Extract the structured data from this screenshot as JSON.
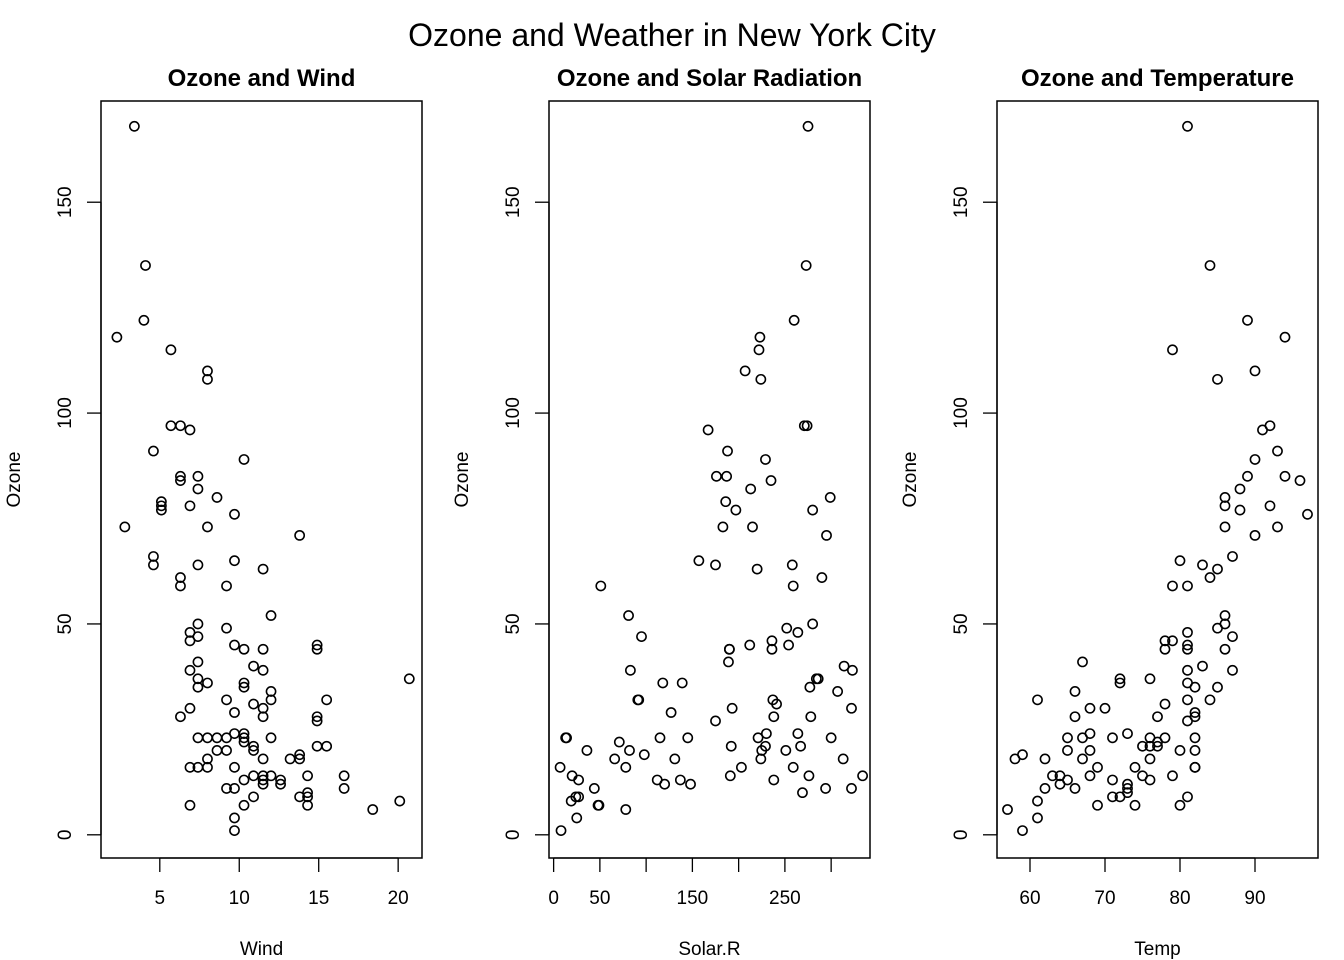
{
  "figure": {
    "title": "Ozone and Weather in New York City"
  },
  "chart_data": [
    {
      "type": "scatter",
      "title": "Ozone and Wind",
      "xlabel": "Wind",
      "ylabel": "Ozone",
      "xlim": [
        1.3,
        21.5
      ],
      "ylim": [
        -5.5,
        174
      ],
      "xticks": [
        5,
        10,
        15,
        20
      ],
      "yticks": [
        0,
        50,
        100,
        150
      ],
      "grid": false,
      "points": [
        [
          2.3,
          118
        ],
        [
          2.8,
          73
        ],
        [
          3.4,
          168
        ],
        [
          4.0,
          122
        ],
        [
          4.1,
          135
        ],
        [
          4.6,
          91
        ],
        [
          4.6,
          66
        ],
        [
          4.6,
          64
        ],
        [
          5.1,
          79
        ],
        [
          5.1,
          78
        ],
        [
          5.1,
          77
        ],
        [
          5.7,
          115
        ],
        [
          5.7,
          97
        ],
        [
          6.3,
          97
        ],
        [
          6.3,
          85
        ],
        [
          6.3,
          84
        ],
        [
          6.3,
          61
        ],
        [
          6.3,
          59
        ],
        [
          6.3,
          28
        ],
        [
          6.9,
          96
        ],
        [
          6.9,
          78
        ],
        [
          6.9,
          48
        ],
        [
          6.9,
          46
        ],
        [
          6.9,
          39
        ],
        [
          6.9,
          30
        ],
        [
          6.9,
          16
        ],
        [
          6.9,
          7
        ],
        [
          7.4,
          85
        ],
        [
          7.4,
          82
        ],
        [
          7.4,
          64
        ],
        [
          7.4,
          50
        ],
        [
          7.4,
          47
        ],
        [
          7.4,
          41
        ],
        [
          7.4,
          37
        ],
        [
          7.4,
          35
        ],
        [
          7.4,
          23
        ],
        [
          7.4,
          16
        ],
        [
          8.0,
          110
        ],
        [
          8.0,
          108
        ],
        [
          8.0,
          73
        ],
        [
          8.0,
          36
        ],
        [
          8.0,
          23
        ],
        [
          8.0,
          18
        ],
        [
          8.0,
          16
        ],
        [
          8.6,
          80
        ],
        [
          8.6,
          23
        ],
        [
          8.6,
          20
        ],
        [
          9.2,
          59
        ],
        [
          9.2,
          49
        ],
        [
          9.2,
          32
        ],
        [
          9.2,
          23
        ],
        [
          9.2,
          20
        ],
        [
          9.2,
          11
        ],
        [
          9.7,
          76
        ],
        [
          9.7,
          65
        ],
        [
          9.7,
          45
        ],
        [
          9.7,
          29
        ],
        [
          9.7,
          24
        ],
        [
          9.7,
          16
        ],
        [
          9.7,
          11
        ],
        [
          9.7,
          4
        ],
        [
          9.7,
          1
        ],
        [
          10.3,
          89
        ],
        [
          10.3,
          44
        ],
        [
          10.3,
          36
        ],
        [
          10.3,
          35
        ],
        [
          10.3,
          24
        ],
        [
          10.3,
          23
        ],
        [
          10.3,
          22
        ],
        [
          10.3,
          13
        ],
        [
          10.3,
          7
        ],
        [
          10.9,
          40
        ],
        [
          10.9,
          31
        ],
        [
          10.9,
          21
        ],
        [
          10.9,
          20
        ],
        [
          10.9,
          14
        ],
        [
          10.9,
          9
        ],
        [
          11.5,
          63
        ],
        [
          11.5,
          44
        ],
        [
          11.5,
          39
        ],
        [
          11.5,
          30
        ],
        [
          11.5,
          28
        ],
        [
          11.5,
          18
        ],
        [
          11.5,
          14
        ],
        [
          11.5,
          13
        ],
        [
          11.5,
          12
        ],
        [
          12.0,
          52
        ],
        [
          12.0,
          34
        ],
        [
          12.0,
          32
        ],
        [
          12.0,
          23
        ],
        [
          12.0,
          14
        ],
        [
          12.6,
          13
        ],
        [
          12.6,
          12
        ],
        [
          13.2,
          18
        ],
        [
          13.8,
          71
        ],
        [
          13.8,
          19
        ],
        [
          13.8,
          18
        ],
        [
          13.8,
          9
        ],
        [
          14.3,
          14
        ],
        [
          14.3,
          10
        ],
        [
          14.3,
          9
        ],
        [
          14.3,
          7
        ],
        [
          14.9,
          45
        ],
        [
          14.9,
          44
        ],
        [
          14.9,
          28
        ],
        [
          14.9,
          27
        ],
        [
          14.9,
          21
        ],
        [
          15.5,
          32
        ],
        [
          15.5,
          21
        ],
        [
          16.6,
          14
        ],
        [
          16.6,
          11
        ],
        [
          18.4,
          6
        ],
        [
          20.1,
          8
        ],
        [
          20.7,
          37
        ]
      ]
    },
    {
      "type": "scatter",
      "title": "Ozone and Solar Radiation",
      "xlabel": "Solar.R",
      "ylabel": "Ozone",
      "xlim": [
        -5,
        342
      ],
      "ylim": [
        -5.5,
        174
      ],
      "xticks": [
        0,
        50,
        150,
        250
      ],
      "extra_ticks": [
        100,
        200,
        300
      ],
      "yticks": [
        0,
        50,
        100,
        150
      ],
      "grid": false,
      "points": [
        [
          8,
          1
        ],
        [
          7,
          16
        ],
        [
          13,
          23
        ],
        [
          14,
          23
        ],
        [
          19,
          8
        ],
        [
          20,
          14
        ],
        [
          24,
          9
        ],
        [
          25,
          4
        ],
        [
          27,
          13
        ],
        [
          27,
          9
        ],
        [
          36,
          20
        ],
        [
          44,
          11
        ],
        [
          48,
          7
        ],
        [
          49,
          7
        ],
        [
          51,
          59
        ],
        [
          66,
          18
        ],
        [
          71,
          22
        ],
        [
          78,
          16
        ],
        [
          78,
          6
        ],
        [
          81,
          52
        ],
        [
          82,
          20
        ],
        [
          83,
          39
        ],
        [
          91,
          32
        ],
        [
          92,
          32
        ],
        [
          95,
          47
        ],
        [
          98,
          19
        ],
        [
          112,
          13
        ],
        [
          115,
          23
        ],
        [
          118,
          36
        ],
        [
          120,
          12
        ],
        [
          127,
          29
        ],
        [
          131,
          18
        ],
        [
          137,
          13
        ],
        [
          139,
          36
        ],
        [
          145,
          23
        ],
        [
          148,
          12
        ],
        [
          157,
          65
        ],
        [
          167,
          96
        ],
        [
          175,
          64
        ],
        [
          175,
          27
        ],
        [
          176,
          85
        ],
        [
          183,
          73
        ],
        [
          186,
          79
        ],
        [
          187,
          85
        ],
        [
          188,
          91
        ],
        [
          190,
          44
        ],
        [
          190,
          44
        ],
        [
          189,
          41
        ],
        [
          191,
          14
        ],
        [
          192,
          21
        ],
        [
          193,
          30
        ],
        [
          197,
          77
        ],
        [
          203,
          16
        ],
        [
          207,
          110
        ],
        [
          212,
          45
        ],
        [
          213,
          82
        ],
        [
          215,
          73
        ],
        [
          220,
          63
        ],
        [
          221,
          23
        ],
        [
          222,
          115
        ],
        [
          223,
          118
        ],
        [
          224,
          18
        ],
        [
          224,
          108
        ],
        [
          225,
          20
        ],
        [
          229,
          89
        ],
        [
          229,
          21
        ],
        [
          230,
          24
        ],
        [
          235,
          84
        ],
        [
          236,
          46
        ],
        [
          236,
          44
        ],
        [
          237,
          32
        ],
        [
          238,
          28
        ],
        [
          238,
          13
        ],
        [
          241,
          31
        ],
        [
          251,
          20
        ],
        [
          252,
          49
        ],
        [
          254,
          45
        ],
        [
          258,
          64
        ],
        [
          259,
          59
        ],
        [
          259,
          16
        ],
        [
          260,
          122
        ],
        [
          264,
          24
        ],
        [
          264,
          48
        ],
        [
          267,
          21
        ],
        [
          269,
          10
        ],
        [
          271,
          97
        ],
        [
          273,
          135
        ],
        [
          274,
          97
        ],
        [
          275,
          168
        ],
        [
          276,
          14
        ],
        [
          277,
          35
        ],
        [
          278,
          28
        ],
        [
          280,
          50
        ],
        [
          280,
          77
        ],
        [
          284,
          37
        ],
        [
          286,
          37
        ],
        [
          290,
          61
        ],
        [
          294,
          11
        ],
        [
          295,
          71
        ],
        [
          299,
          80
        ],
        [
          300,
          23
        ],
        [
          307,
          34
        ],
        [
          313,
          18
        ],
        [
          314,
          40
        ],
        [
          322,
          11
        ],
        [
          322,
          30
        ],
        [
          323,
          39
        ],
        [
          334,
          14
        ]
      ]
    },
    {
      "type": "scatter",
      "title": "Ozone and Temperature",
      "xlabel": "Temp",
      "ylabel": "Ozone",
      "xlim": [
        55.6,
        98.4
      ],
      "ylim": [
        -5.5,
        174
      ],
      "xticks": [
        60,
        70,
        80,
        90
      ],
      "yticks": [
        0,
        50,
        100,
        150
      ],
      "grid": false,
      "points": [
        [
          57,
          6
        ],
        [
          58,
          18
        ],
        [
          59,
          1
        ],
        [
          59,
          19
        ],
        [
          61,
          32
        ],
        [
          61,
          8
        ],
        [
          61,
          4
        ],
        [
          62,
          11
        ],
        [
          62,
          18
        ],
        [
          63,
          14
        ],
        [
          64,
          14
        ],
        [
          64,
          12
        ],
        [
          65,
          23
        ],
        [
          65,
          20
        ],
        [
          65,
          13
        ],
        [
          66,
          34
        ],
        [
          66,
          28
        ],
        [
          66,
          11
        ],
        [
          67,
          41
        ],
        [
          67,
          23
        ],
        [
          67,
          18
        ],
        [
          68,
          30
        ],
        [
          68,
          24
        ],
        [
          68,
          20
        ],
        [
          68,
          14
        ],
        [
          69,
          16
        ],
        [
          69,
          7
        ],
        [
          70,
          30
        ],
        [
          71,
          23
        ],
        [
          71,
          13
        ],
        [
          71,
          9
        ],
        [
          72,
          37
        ],
        [
          72,
          36
        ],
        [
          72,
          9
        ],
        [
          73,
          24
        ],
        [
          73,
          12
        ],
        [
          73,
          11
        ],
        [
          73,
          10
        ],
        [
          74,
          16
        ],
        [
          74,
          7
        ],
        [
          75,
          21
        ],
        [
          75,
          14
        ],
        [
          76,
          37
        ],
        [
          76,
          23
        ],
        [
          76,
          21
        ],
        [
          76,
          18
        ],
        [
          76,
          13
        ],
        [
          77,
          28
        ],
        [
          77,
          22
        ],
        [
          77,
          21
        ],
        [
          78,
          46
        ],
        [
          78,
          44
        ],
        [
          78,
          31
        ],
        [
          78,
          23
        ],
        [
          79,
          115
        ],
        [
          79,
          59
        ],
        [
          79,
          46
        ],
        [
          79,
          14
        ],
        [
          80,
          65
        ],
        [
          80,
          20
        ],
        [
          80,
          7
        ],
        [
          81,
          168
        ],
        [
          81,
          59
        ],
        [
          81,
          48
        ],
        [
          81,
          45
        ],
        [
          81,
          44
        ],
        [
          81,
          39
        ],
        [
          81,
          36
        ],
        [
          81,
          32
        ],
        [
          81,
          27
        ],
        [
          81,
          9
        ],
        [
          82,
          35
        ],
        [
          82,
          29
        ],
        [
          82,
          28
        ],
        [
          82,
          23
        ],
        [
          82,
          20
        ],
        [
          82,
          16
        ],
        [
          82,
          16
        ],
        [
          83,
          64
        ],
        [
          83,
          40
        ],
        [
          84,
          135
        ],
        [
          84,
          61
        ],
        [
          84,
          32
        ],
        [
          85,
          108
        ],
        [
          85,
          63
        ],
        [
          85,
          49
        ],
        [
          85,
          35
        ],
        [
          86,
          80
        ],
        [
          86,
          78
        ],
        [
          86,
          73
        ],
        [
          86,
          52
        ],
        [
          86,
          50
        ],
        [
          86,
          44
        ],
        [
          87,
          66
        ],
        [
          87,
          47
        ],
        [
          87,
          39
        ],
        [
          88,
          82
        ],
        [
          88,
          77
        ],
        [
          89,
          122
        ],
        [
          89,
          85
        ],
        [
          90,
          110
        ],
        [
          90,
          89
        ],
        [
          90,
          71
        ],
        [
          91,
          96
        ],
        [
          92,
          97
        ],
        [
          92,
          78
        ],
        [
          93,
          91
        ],
        [
          93,
          73
        ],
        [
          94,
          118
        ],
        [
          94,
          85
        ],
        [
          96,
          84
        ],
        [
          97,
          76
        ]
      ]
    }
  ]
}
